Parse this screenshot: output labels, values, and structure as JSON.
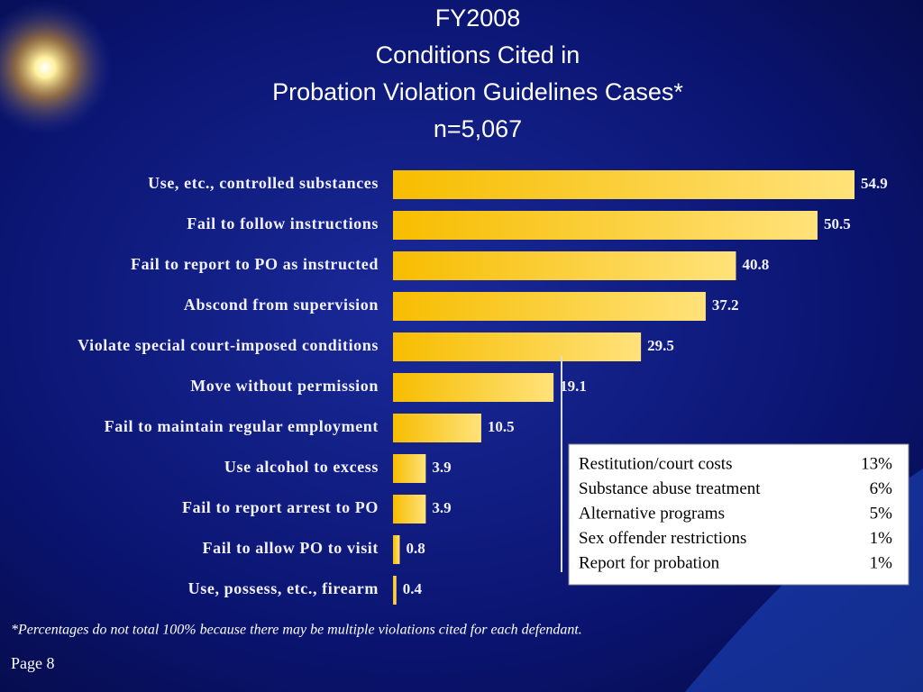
{
  "chart_data": {
    "type": "bar",
    "orientation": "horizontal",
    "title_lines": [
      "FY2008",
      "Conditions Cited in",
      "Probation Violation Guidelines Cases*",
      "n=5,067"
    ],
    "categories": [
      "Use, etc., controlled substances",
      "Fail to follow instructions",
      "Fail to report to PO as instructed",
      "Abscond from supervision",
      "Violate special court-imposed conditions",
      "Move without permission",
      "Fail to maintain regular employment",
      "Use alcohol to excess",
      "Fail to report arrest to PO",
      "Fail to allow PO to visit",
      "Use, possess, etc., firearm"
    ],
    "values": [
      54.9,
      50.5,
      40.8,
      37.2,
      29.5,
      19.1,
      10.5,
      3.9,
      3.9,
      0.8,
      0.4
    ],
    "color": "#fbc510"
  },
  "inset_table": {
    "rows": [
      [
        "Restitution/court costs",
        "13%"
      ],
      [
        "Substance abuse treatment",
        "6%"
      ],
      [
        "Alternative programs",
        "5%"
      ],
      [
        "Sex offender restrictions",
        "1%"
      ],
      [
        "Report for probation",
        "1%"
      ]
    ]
  },
  "footnote": "*Percentages do not total 100% because there may be multiple violations cited for each defendant.",
  "page_label": "Page 8"
}
